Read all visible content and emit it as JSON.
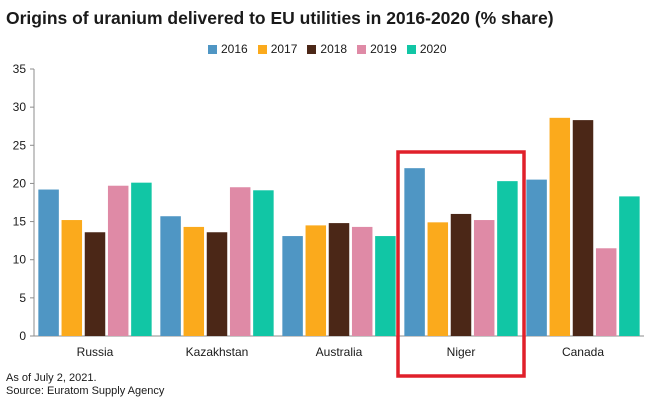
{
  "title": "Origins of uranium delivered to EU utilities in 2016-2020 (% share)",
  "notes": {
    "as_of": "As of July 2, 2021.",
    "source": "Source: Euratom Supply Agency"
  },
  "highlight": {
    "category": "Niger",
    "color": "#e0202a"
  },
  "chart_data": {
    "type": "bar",
    "title": "Origins of uranium delivered to EU utilities in 2016-2020 (% share)",
    "xlabel": "",
    "ylabel": "",
    "ylim": [
      0,
      35
    ],
    "yticks": [
      0,
      5,
      10,
      15,
      20,
      25,
      30,
      35
    ],
    "grid": false,
    "legend": "top-center",
    "categories": [
      "Russia",
      "Kazakhstan",
      "Australia",
      "Niger",
      "Canada"
    ],
    "series": [
      {
        "name": "2016",
        "color": "#4f96c4",
        "values": [
          19.2,
          15.7,
          13.1,
          22.0,
          20.5
        ]
      },
      {
        "name": "2017",
        "color": "#fbaa1c",
        "values": [
          15.2,
          14.3,
          14.5,
          14.9,
          28.6
        ]
      },
      {
        "name": "2018",
        "color": "#4b2717",
        "values": [
          13.6,
          13.6,
          14.8,
          16.0,
          28.3
        ]
      },
      {
        "name": "2019",
        "color": "#df8aa6",
        "values": [
          19.7,
          19.5,
          14.3,
          15.2,
          11.5
        ]
      },
      {
        "name": "2020",
        "color": "#11c6a5",
        "values": [
          20.1,
          19.1,
          13.1,
          20.3,
          18.3
        ]
      }
    ]
  }
}
